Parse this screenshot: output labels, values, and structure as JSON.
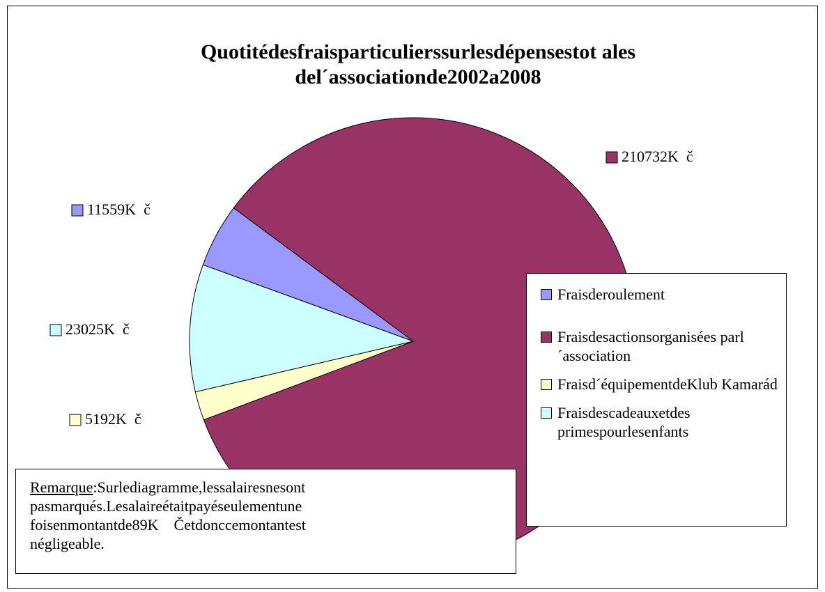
{
  "chart_data": {
    "type": "pie",
    "title": [
      "Quotitédesfraisparticulierssurlesdépensestot      ales",
      "del´associationde2002a2008"
    ],
    "categories": [
      "Fraisderoulement",
      "Fraisdesactionsorganisées parl´association",
      "Fraisd´équipementdeKlub Kamarád",
      "Fraisdescadeauxetdes primespourlesenfants"
    ],
    "values": [
      11559,
      210732,
      5192,
      23025
    ],
    "value_labels": [
      "11559K  č",
      "210732K  č",
      "5192K  č",
      "23025K  č"
    ],
    "colors": [
      "#9999ff",
      "#993366",
      "#ffffcc",
      "#ccffff"
    ],
    "legend": "right",
    "note_label": "Remarque",
    "note_lines": [
      ":Surlediagramme,lessalairesnesont",
      "pasmarqués.Lesalaireétaitpayéseulementune",
      "foisenmontantde89K    Četdonccemontantest",
      "négligeable."
    ]
  }
}
